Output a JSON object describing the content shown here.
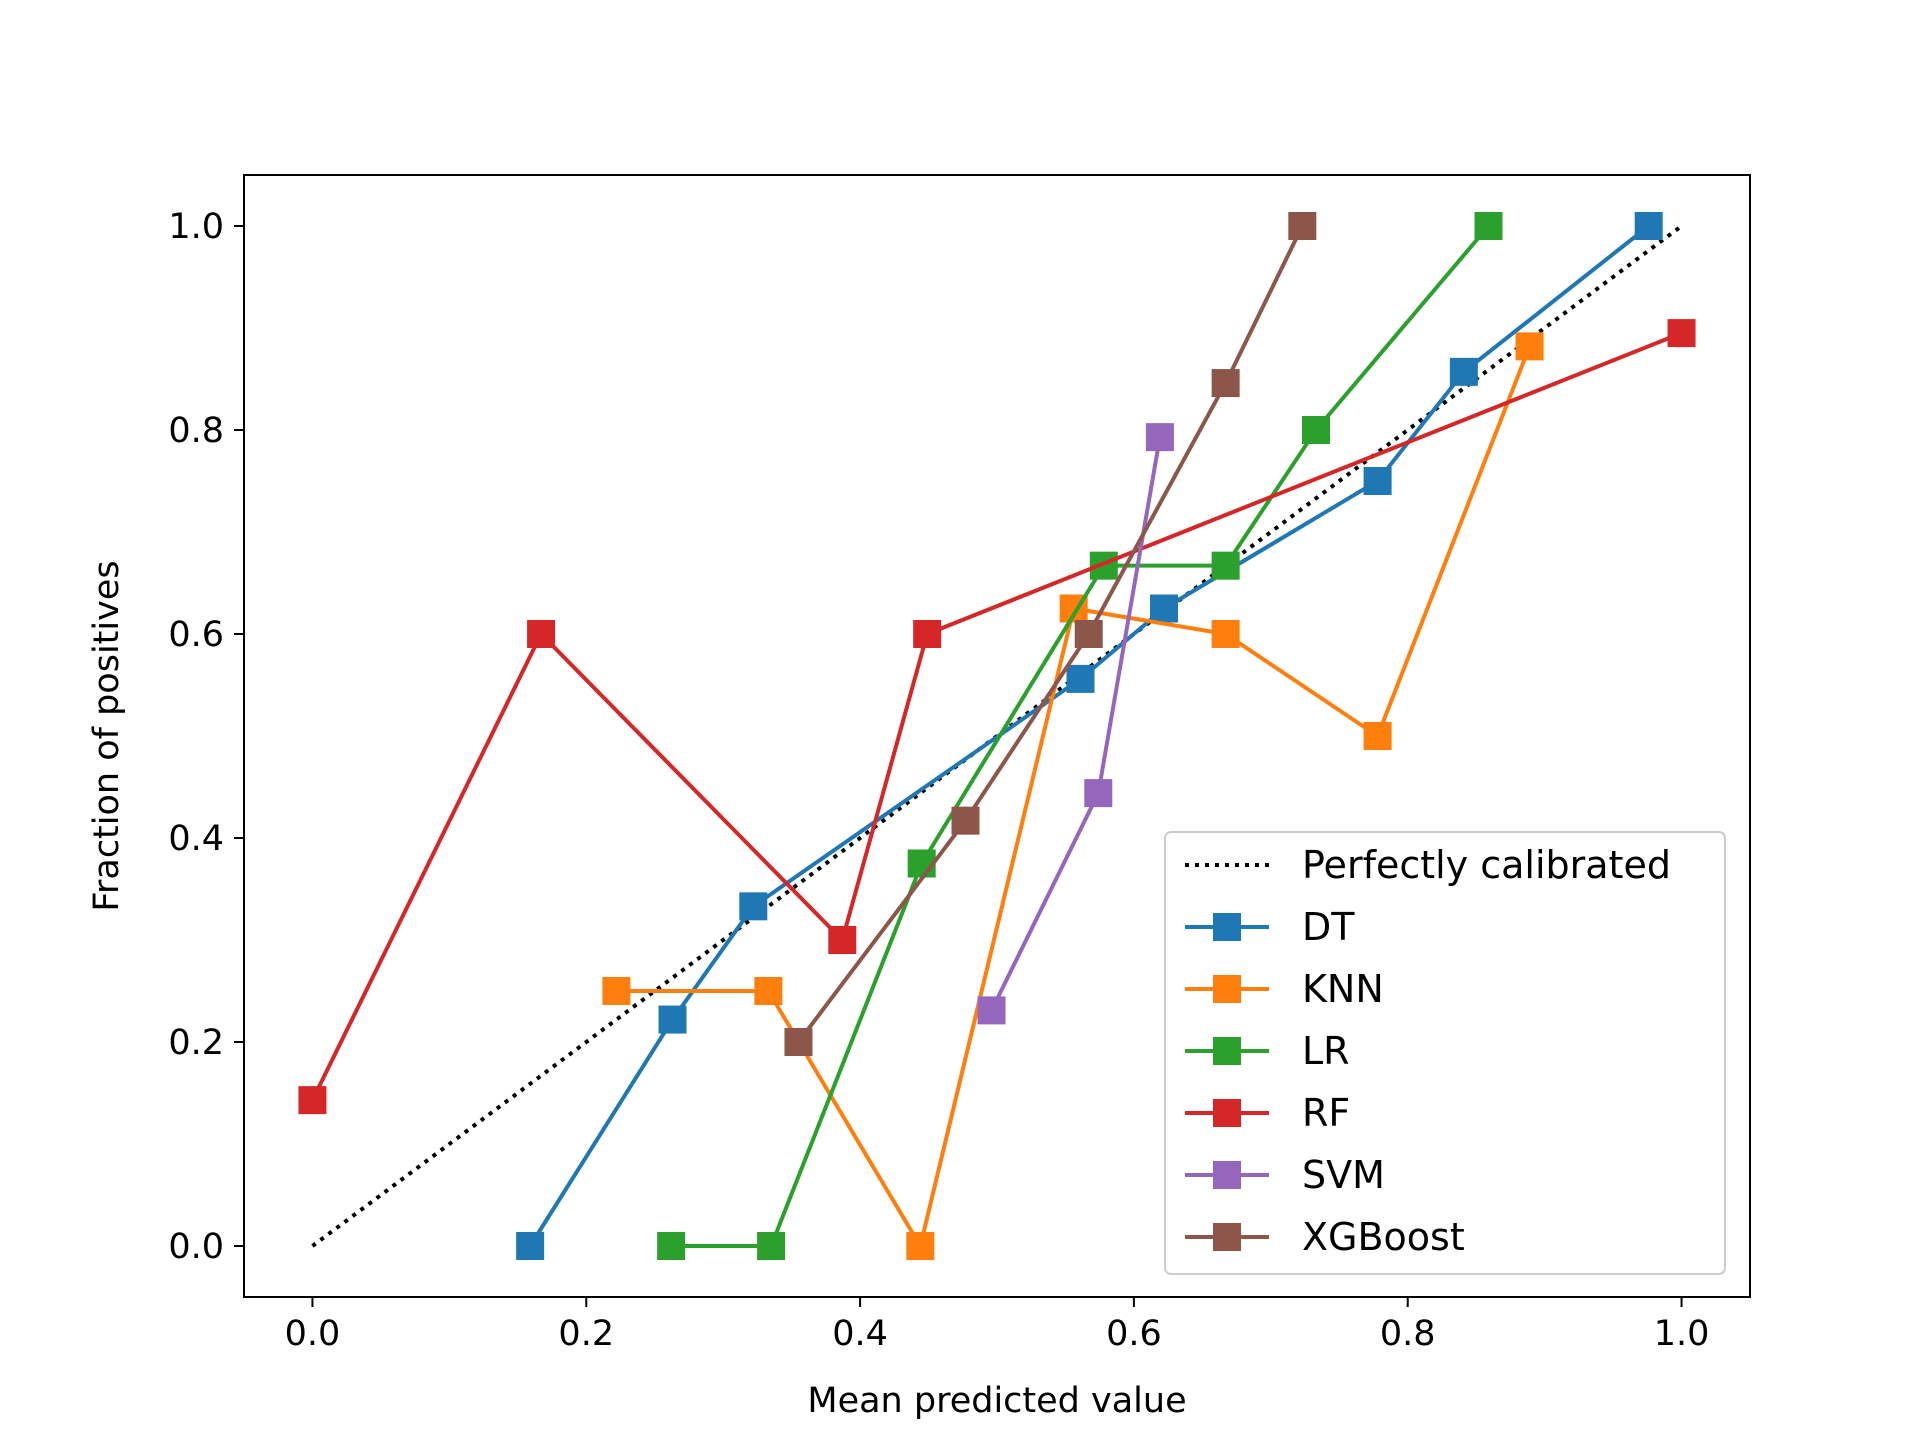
{
  "chart_data": {
    "type": "line",
    "title": "",
    "xlabel": "Mean predicted value",
    "ylabel": "Fraction of positives",
    "xlim": [
      -0.05,
      1.05
    ],
    "ylim": [
      -0.05,
      1.05
    ],
    "xticks": [
      0.0,
      0.2,
      0.4,
      0.6,
      0.8,
      1.0
    ],
    "yticks": [
      0.0,
      0.2,
      0.4,
      0.6,
      0.8,
      1.0
    ],
    "xtick_labels": [
      "0.0",
      "0.2",
      "0.4",
      "0.6",
      "0.8",
      "1.0"
    ],
    "ytick_labels": [
      "0.0",
      "0.2",
      "0.4",
      "0.6",
      "0.8",
      "1.0"
    ],
    "grid": false,
    "legend_position": "lower-right",
    "reference": {
      "name": "Perfectly calibrated",
      "color": "#000000",
      "style": "dotted",
      "x": [
        0,
        1
      ],
      "y": [
        0,
        1
      ]
    },
    "series": [
      {
        "name": "DT",
        "color": "#1f77b4",
        "x": [
          0.159,
          0.263,
          0.322,
          0.561,
          0.622,
          0.778,
          0.841,
          0.976
        ],
        "y": [
          0.0,
          0.222,
          0.333,
          0.556,
          0.625,
          0.75,
          0.857,
          1.0
        ]
      },
      {
        "name": "KNN",
        "color": "#ff7f0e",
        "x": [
          0.222,
          0.333,
          0.444,
          0.556,
          0.667,
          0.778,
          0.889
        ],
        "y": [
          0.25,
          0.25,
          0.0,
          0.625,
          0.6,
          0.5,
          0.882
        ]
      },
      {
        "name": "LR",
        "color": "#2ca02c",
        "x": [
          0.262,
          0.335,
          0.445,
          0.578,
          0.667,
          0.733,
          0.859
        ],
        "y": [
          0.0,
          0.0,
          0.375,
          0.667,
          0.667,
          0.8,
          1.0
        ]
      },
      {
        "name": "RF",
        "color": "#d62728",
        "x": [
          0.0,
          0.167,
          0.387,
          0.449,
          1.0
        ],
        "y": [
          0.143,
          0.6,
          0.3,
          0.6,
          0.895
        ]
      },
      {
        "name": "SVM",
        "color": "#9467bd",
        "x": [
          0.496,
          0.574,
          0.619
        ],
        "y": [
          0.231,
          0.444,
          0.793
        ]
      },
      {
        "name": "XGBoost",
        "color": "#8c564b",
        "x": [
          0.355,
          0.477,
          0.567,
          0.667,
          0.723
        ],
        "y": [
          0.2,
          0.417,
          0.6,
          0.846,
          1.0
        ]
      }
    ]
  }
}
